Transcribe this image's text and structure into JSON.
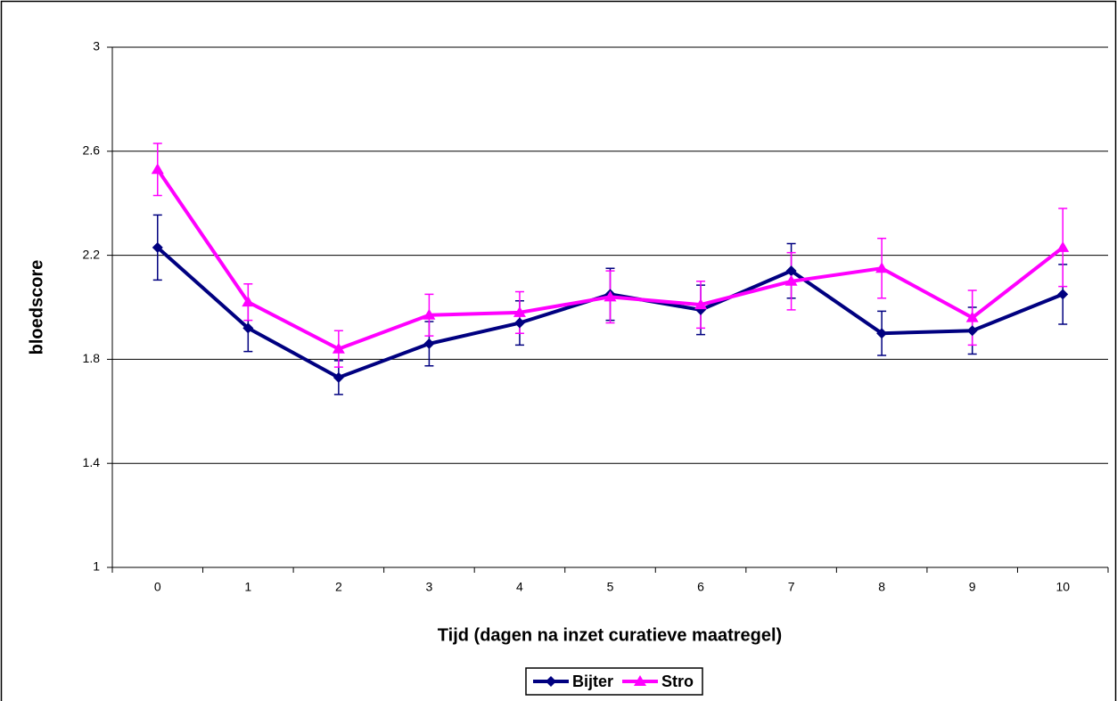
{
  "chart_data": {
    "type": "line",
    "x_label": "Tijd (dagen na inzet curatieve maatregel)",
    "y_label": "bloedscore",
    "categories": [
      "0",
      "1",
      "2",
      "3",
      "4",
      "5",
      "6",
      "7",
      "8",
      "9",
      "10"
    ],
    "series": [
      {
        "name": "Bijter",
        "color": "#000080",
        "marker": "diamond",
        "values": [
          2.23,
          1.92,
          1.73,
          1.86,
          1.94,
          2.05,
          1.99,
          2.14,
          1.9,
          1.91,
          2.05
        ],
        "errors": [
          0.125,
          0.09,
          0.065,
          0.085,
          0.085,
          0.1,
          0.095,
          0.105,
          0.085,
          0.09,
          0.115
        ]
      },
      {
        "name": "Stro",
        "color": "#ff00ff",
        "marker": "triangle",
        "values": [
          2.53,
          2.02,
          1.84,
          1.97,
          1.98,
          2.04,
          2.01,
          2.1,
          2.15,
          1.96,
          2.23
        ],
        "errors": [
          0.1,
          0.07,
          0.07,
          0.08,
          0.08,
          0.1,
          0.09,
          0.11,
          0.115,
          0.105,
          0.15
        ]
      }
    ],
    "ylim": [
      1,
      3
    ],
    "yticks": [
      1,
      1.4,
      1.8,
      2.2,
      2.6,
      3
    ],
    "grid": true,
    "legend": "bottom"
  }
}
